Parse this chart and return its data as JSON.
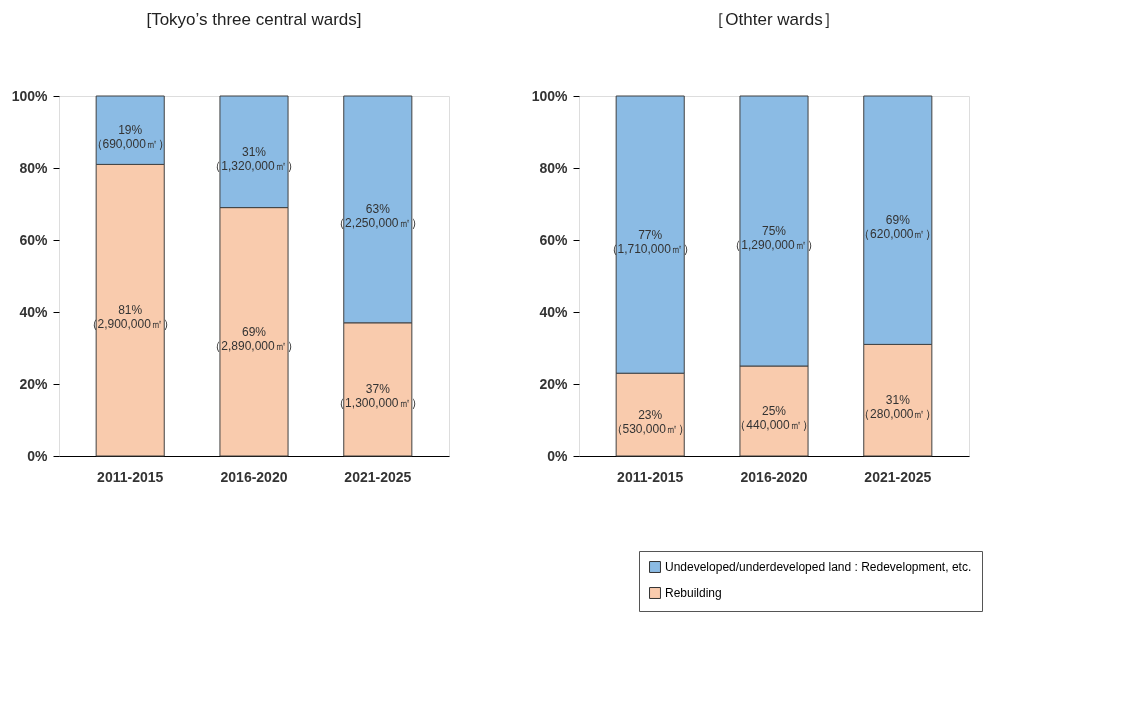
{
  "chart_data": [
    {
      "type": "bar",
      "title": "[Tokyo’s three central wards]",
      "stacked": true,
      "categories": [
        "2011-2015",
        "2016-2020",
        "2021-2025"
      ],
      "ylim": [
        0,
        100
      ],
      "yticks": [
        {
          "value": 0,
          "label": "0%"
        },
        {
          "value": 20,
          "label": "20%"
        },
        {
          "value": 40,
          "label": "40%"
        },
        {
          "value": 60,
          "label": "60%"
        },
        {
          "value": 80,
          "label": "80%"
        },
        {
          "value": 100,
          "label": "100%"
        }
      ],
      "grid": false,
      "legend": false,
      "series": [
        {
          "color": "#f9cbad",
          "values": [
            81,
            69,
            37
          ],
          "value_labels": [
            "81%\n（2,900,000㎡）",
            "69%\n（2,890,000㎡）",
            "37%\n（1,300,000㎡）"
          ]
        },
        {
          "color": "#8bbbe4",
          "values": [
            19,
            31,
            63
          ],
          "value_labels": [
            "19%\n（690,000㎡）",
            "31%\n（1,320,000㎡）",
            "63%\n（2,250,000㎡）"
          ]
        }
      ]
    },
    {
      "type": "bar",
      "title": "［Othter wards］",
      "stacked": true,
      "categories": [
        "2011-2015",
        "2016-2020",
        "2021-2025"
      ],
      "ylim": [
        0,
        100
      ],
      "yticks": [
        {
          "value": 0,
          "label": "0%"
        },
        {
          "value": 20,
          "label": "20%"
        },
        {
          "value": 40,
          "label": "40%"
        },
        {
          "value": 60,
          "label": "60%"
        },
        {
          "value": 80,
          "label": "80%"
        },
        {
          "value": 100,
          "label": "100%"
        }
      ],
      "grid": false,
      "legend": "bottom right",
      "series": [
        {
          "name": "Rebuilding",
          "color": "#f9cbad",
          "values": [
            23,
            25,
            31
          ],
          "value_labels": [
            "23%\n（530,000㎡）",
            "25%\n（440,000㎡）",
            "31%\n（280,000㎡）"
          ]
        },
        {
          "name": "Undeveloped/underdeveloped land : Redevelopment, etc.",
          "color": "#8bbbe4",
          "values": [
            77,
            75,
            69
          ],
          "value_labels": [
            "77%\n（1,710,000㎡）",
            "75%\n（1,290,000㎡）",
            "69%\n（620,000㎡）"
          ]
        }
      ]
    }
  ]
}
